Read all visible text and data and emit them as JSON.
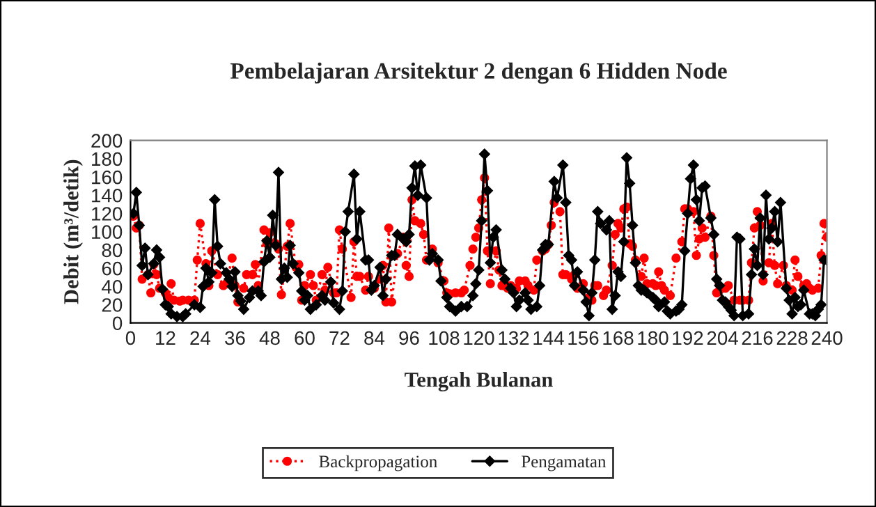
{
  "chart_data": {
    "type": "line",
    "title": "Pembelajaran Arsitektur 2 dengan 6 Hidden Node",
    "xlabel": "Tengah Bulanan",
    "ylabel": "Debit (m³/detik)",
    "xlim": [
      0,
      240
    ],
    "xticks": [
      0,
      12,
      24,
      36,
      48,
      60,
      72,
      84,
      96,
      108,
      120,
      132,
      144,
      156,
      168,
      180,
      192,
      204,
      216,
      228,
      240
    ],
    "ylim": [
      0,
      200
    ],
    "yticks": [
      0,
      20,
      40,
      60,
      80,
      100,
      120,
      140,
      160,
      180,
      200
    ],
    "grid": false,
    "legend": "bottom",
    "series": [
      {
        "name": "Backpropagation",
        "color": "#ff0000",
        "marker": "circle",
        "line_style": "dotted",
        "x": [
          1,
          2,
          3,
          4,
          6,
          7,
          8,
          9,
          10,
          12,
          13,
          14,
          15,
          17,
          18,
          20,
          22,
          23,
          24,
          26,
          27,
          28,
          30,
          32,
          33,
          35,
          36,
          37,
          39,
          40,
          42,
          43,
          44,
          46,
          47,
          48,
          50,
          51,
          52,
          54,
          55,
          57,
          58,
          59,
          60,
          62,
          63,
          64,
          66,
          67,
          68,
          70,
          71,
          72,
          73,
          76,
          77,
          78,
          79,
          81,
          82,
          84,
          86,
          87,
          88,
          89,
          90,
          92,
          94,
          95,
          96,
          97,
          98,
          100,
          101,
          102,
          104,
          106,
          108,
          109,
          110,
          112,
          114,
          115,
          117,
          118,
          119,
          120,
          121,
          122,
          123,
          124,
          126,
          127,
          128,
          130,
          131,
          133,
          134,
          136,
          137,
          139,
          140,
          142,
          143,
          144,
          145,
          146,
          148,
          149,
          150,
          152,
          153,
          154,
          156,
          158,
          159,
          160,
          161,
          163,
          164,
          166,
          167,
          168,
          169,
          170,
          171,
          172,
          173,
          174,
          176,
          177,
          178,
          180,
          181,
          182,
          183,
          184,
          186,
          188,
          190,
          191,
          192,
          194,
          195,
          196,
          197,
          198,
          200,
          201,
          202,
          203,
          205,
          206,
          208,
          210,
          211,
          213,
          214,
          215,
          216,
          217,
          218,
          220,
          221,
          222,
          223,
          225,
          226,
          228,
          229,
          230,
          232,
          233,
          234,
          235,
          237,
          238,
          239,
          240
        ],
        "values": [
          117,
          104,
          107,
          48,
          53,
          33,
          64,
          53,
          38,
          33,
          28,
          43,
          25,
          24,
          25,
          25,
          25,
          69,
          109,
          65,
          41,
          79,
          53,
          41,
          43,
          71,
          41,
          23,
          38,
          53,
          53,
          64,
          41,
          102,
          87,
          99,
          87,
          81,
          31,
          84,
          109,
          61,
          64,
          25,
          41,
          53,
          41,
          25,
          53,
          36,
          61,
          33,
          33,
          102,
          81,
          28,
          89,
          51,
          51,
          36,
          51,
          38,
          48,
          63,
          23,
          104,
          23,
          76,
          94,
          63,
          51,
          135,
          112,
          109,
          97,
          69,
          81,
          66,
          46,
          33,
          32,
          33,
          33,
          36,
          63,
          81,
          94,
          104,
          135,
          159,
          79,
          43,
          79,
          58,
          41,
          38,
          41,
          38,
          46,
          46,
          41,
          36,
          69,
          79,
          81,
          86,
          107,
          132,
          122,
          53,
          53,
          48,
          53,
          38,
          43,
          28,
          25,
          41,
          41,
          30,
          36,
          63,
          97,
          109,
          104,
          125,
          127,
          87,
          84,
          69,
          51,
          71,
          43,
          43,
          41,
          56,
          41,
          36,
          30,
          71,
          89,
          125,
          125,
          122,
          74,
          92,
          104,
          94,
          117,
          74,
          33,
          36,
          38,
          41,
          25,
          25,
          25,
          25,
          66,
          104,
          122,
          107,
          46,
          66,
          109,
          63,
          43,
          63,
          41,
          36,
          69,
          51,
          41,
          43,
          38,
          36,
          38,
          74,
          109,
          94
        ]
      },
      {
        "name": "Pengamatan",
        "color": "#000000",
        "marker": "diamond",
        "line_style": "solid",
        "x": [
          1,
          2,
          3,
          4,
          5,
          6,
          8,
          9,
          10,
          11,
          12,
          13,
          14,
          16,
          18,
          19,
          22,
          24,
          25,
          26,
          27,
          28,
          29,
          30,
          31,
          33,
          34,
          35,
          36,
          37,
          38,
          39,
          41,
          42,
          44,
          45,
          46,
          47,
          48,
          49,
          50,
          51,
          52,
          53,
          54,
          55,
          56,
          58,
          59,
          60,
          61,
          62,
          64,
          66,
          67,
          69,
          70,
          72,
          73,
          74,
          75,
          77,
          78,
          79,
          81,
          82,
          83,
          84,
          86,
          87,
          88,
          90,
          91,
          92,
          94,
          95,
          96,
          97,
          98,
          99,
          100,
          102,
          103,
          104,
          106,
          107,
          109,
          110,
          112,
          114,
          116,
          118,
          119,
          120,
          121,
          122,
          123,
          124,
          125,
          126,
          128,
          129,
          131,
          132,
          133,
          134,
          136,
          137,
          138,
          140,
          141,
          142,
          143,
          144,
          146,
          147,
          149,
          150,
          151,
          152,
          153,
          154,
          156,
          157,
          158,
          159,
          160,
          161,
          162,
          164,
          165,
          166,
          167,
          168,
          169,
          170,
          171,
          172,
          173,
          174,
          175,
          176,
          177,
          178,
          180,
          181,
          182,
          184,
          185,
          186,
          188,
          189,
          190,
          191,
          192,
          193,
          194,
          195,
          196,
          197,
          198,
          200,
          201,
          202,
          203,
          204,
          205,
          206,
          207,
          208,
          209,
          210,
          211,
          213,
          214,
          215,
          216,
          217,
          218,
          219,
          220,
          221,
          222,
          223,
          224,
          226,
          227,
          228,
          229,
          230,
          231,
          232,
          234,
          235,
          236,
          237,
          238,
          239,
          240
        ],
        "values": [
          120,
          143,
          107,
          63,
          82,
          53,
          65,
          80,
          72,
          37,
          20,
          18,
          10,
          7,
          7,
          10,
          20,
          17,
          40,
          60,
          45,
          55,
          135,
          84,
          65,
          55,
          48,
          40,
          56,
          30,
          24,
          15,
          28,
          35,
          35,
          30,
          67,
          90,
          72,
          118,
          85,
          165,
          48,
          60,
          50,
          85,
          65,
          55,
          35,
          25,
          30,
          15,
          20,
          30,
          25,
          45,
          22,
          15,
          35,
          100,
          122,
          163,
          92,
          122,
          69,
          69,
          36,
          41,
          61,
          30,
          48,
          74,
          74,
          97,
          92,
          89,
          97,
          148,
          172,
          140,
          173,
          137,
          69,
          76,
          69,
          46,
          28,
          18,
          13,
          18,
          18,
          30,
          43,
          58,
          112,
          185,
          145,
          66,
          94,
          102,
          58,
          48,
          38,
          33,
          18,
          25,
          33,
          25,
          15,
          18,
          41,
          80,
          86,
          86,
          155,
          137,
          173,
          132,
          74,
          69,
          41,
          56,
          36,
          23,
          8,
          33,
          69,
          122,
          109,
          102,
          112,
          15,
          30,
          56,
          51,
          89,
          181,
          153,
          107,
          66,
          41,
          36,
          36,
          33,
          28,
          25,
          18,
          23,
          13,
          10,
          13,
          15,
          20,
          79,
          120,
          158,
          173,
          135,
          112,
          148,
          150,
          115,
          97,
          48,
          41,
          25,
          23,
          18,
          14,
          8,
          94,
          92,
          8,
          10,
          53,
          81,
          63,
          115,
          53,
          140,
          92,
          104,
          122,
          89,
          132,
          38,
          25,
          10,
          28,
          18,
          20,
          36,
          10,
          10,
          8,
          15,
          20,
          69,
          69
        ]
      }
    ]
  }
}
